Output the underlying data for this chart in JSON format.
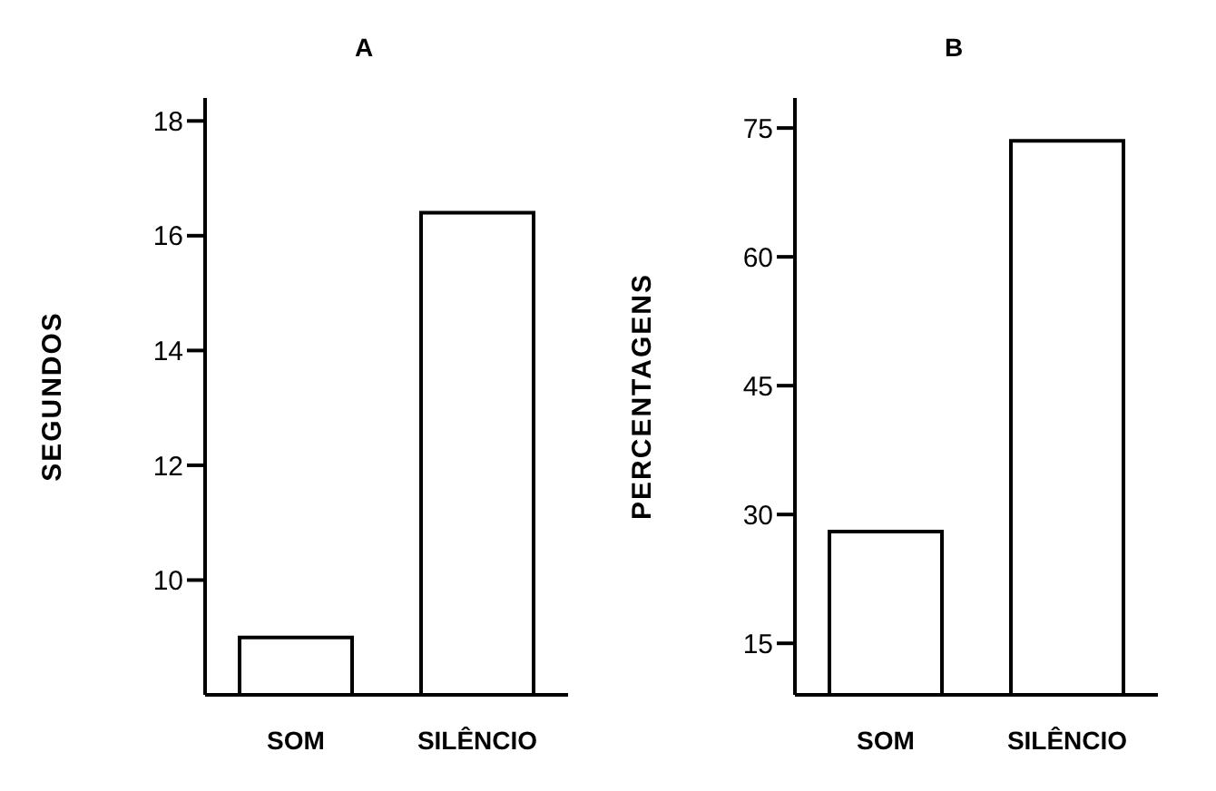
{
  "chart_data": [
    {
      "type": "bar",
      "title": "A",
      "ylabel": "SEGUNDOS",
      "categories": [
        "SOM",
        "SILÊNCIO"
      ],
      "values": [
        9.0,
        16.4
      ],
      "color": "#ffffff",
      "ylim": [
        8,
        18.4
      ],
      "yticks": [
        10,
        12,
        14,
        16,
        18
      ],
      "grid": false,
      "legend": false
    },
    {
      "type": "bar",
      "title": "B",
      "ylabel": "PERCENTAGENS",
      "categories": [
        "SOM",
        "SILÊNCIO"
      ],
      "values": [
        28,
        73.5
      ],
      "color": "#ffffff",
      "ylim": [
        9,
        78.5
      ],
      "yticks": [
        15,
        30,
        45,
        60,
        75
      ],
      "grid": false,
      "legend": false
    }
  ]
}
